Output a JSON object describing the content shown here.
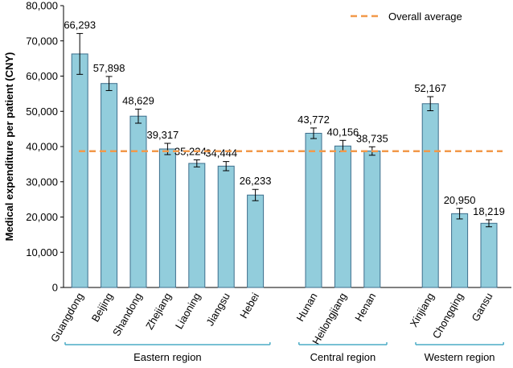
{
  "chart_data": {
    "type": "bar",
    "ylabel": "Medical expenditure per patient (CNY)",
    "ylim": [
      0,
      80000
    ],
    "yticks": [
      0,
      10000,
      20000,
      30000,
      40000,
      50000,
      60000,
      70000,
      80000
    ],
    "ytick_labels": [
      "0",
      "10,000",
      "20,000",
      "30,000",
      "40,000",
      "50,000",
      "60,000",
      "70,000",
      "80,000"
    ],
    "categories": [
      "Guangdong",
      "Beijing",
      "Shandong",
      "Zhejiang",
      "Liaoning",
      "Jiangsu",
      "Hebei",
      "Hunan",
      "Heilongjiang",
      "Henan",
      "Xinjiang",
      "Chongqing",
      "Gansu"
    ],
    "values": [
      66293,
      57898,
      48629,
      39317,
      35224,
      34444,
      26233,
      43772,
      40156,
      38735,
      52167,
      20950,
      18219
    ],
    "value_labels": [
      "66,293",
      "57,898",
      "48,629",
      "39,317",
      "35,224",
      "34,444",
      "26,233",
      "43,772",
      "40,156",
      "38,735",
      "52,167",
      "20,950",
      "18,219"
    ],
    "errors": [
      5800,
      2000,
      2000,
      1600,
      1000,
      1300,
      1600,
      1500,
      1600,
      1200,
      2000,
      1500,
      1000
    ],
    "groups": [
      {
        "label": "Eastern region",
        "start": 0,
        "end": 6
      },
      {
        "label": "Central region",
        "start": 7,
        "end": 9
      },
      {
        "label": "Western region",
        "start": 10,
        "end": 12
      }
    ],
    "reference_line": {
      "value": 38700,
      "label": "Overall average",
      "color": "#F2994A"
    },
    "legend": {
      "placement": "top-right",
      "label": "Overall average"
    },
    "colors": {
      "bar_fill": "#92CDDC",
      "bar_stroke": "#3E6E8C",
      "bracket": "#4BACC6",
      "axis": "#000000"
    },
    "grid": false
  }
}
